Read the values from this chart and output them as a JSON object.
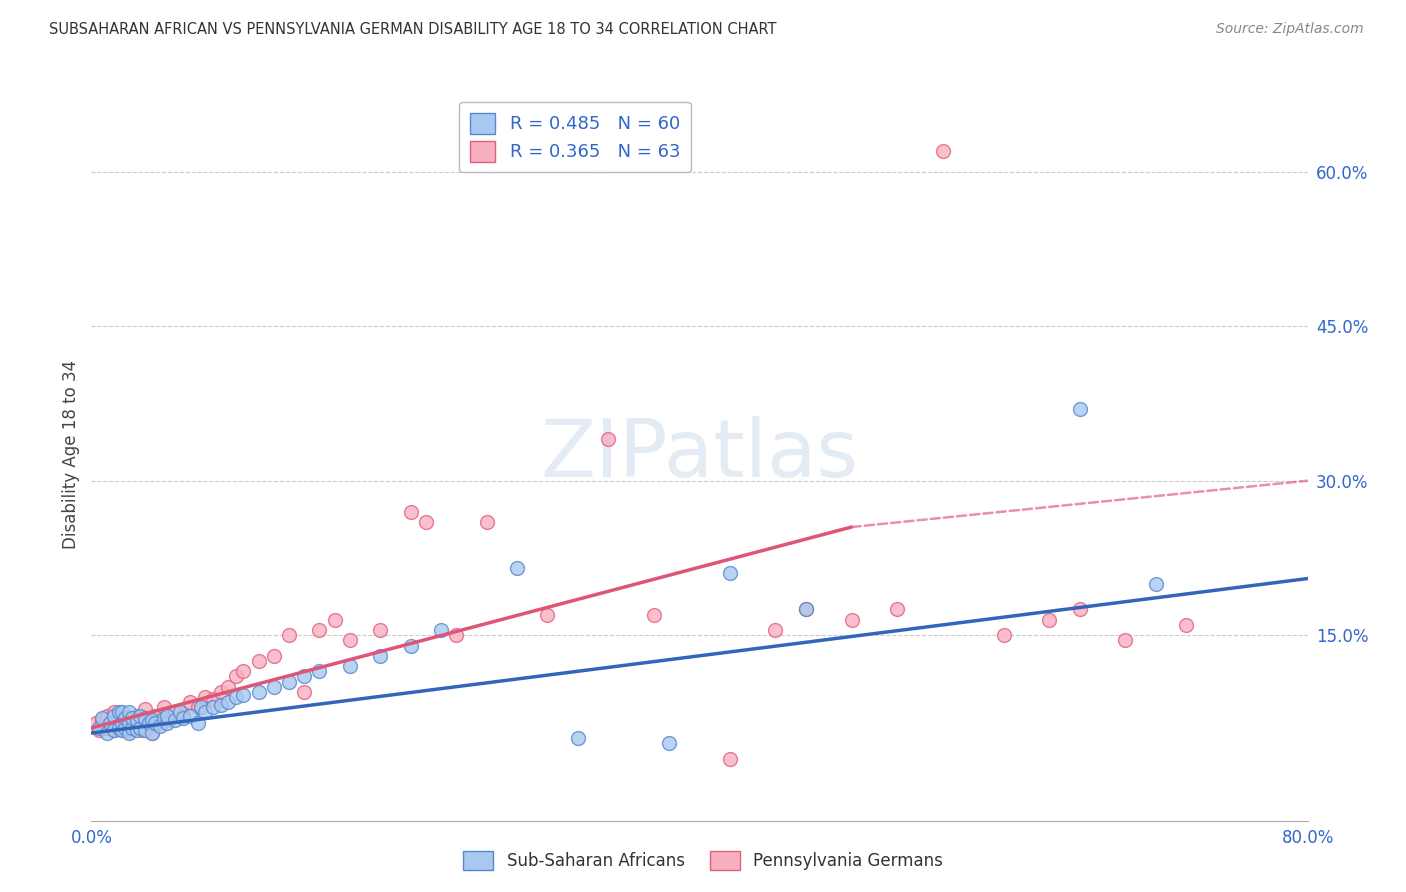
{
  "title": "SUBSAHARAN AFRICAN VS PENNSYLVANIA GERMAN DISABILITY AGE 18 TO 34 CORRELATION CHART",
  "source": "Source: ZipAtlas.com",
  "ylabel": "Disability Age 18 to 34",
  "xlim": [
    0,
    0.8
  ],
  "ylim": [
    -0.03,
    0.68
  ],
  "ytick_positions": [
    0.15,
    0.3,
    0.45,
    0.6
  ],
  "ytick_labels": [
    "15.0%",
    "30.0%",
    "45.0%",
    "60.0%"
  ],
  "blue_R": 0.485,
  "blue_N": 60,
  "pink_R": 0.365,
  "pink_N": 63,
  "blue_color": "#A8C8F0",
  "pink_color": "#F8B0C0",
  "blue_edge_color": "#5588CC",
  "pink_edge_color": "#E06080",
  "blue_line_color": "#3366BB",
  "pink_line_color": "#DD5577",
  "legend_label_blue": "Sub-Saharan Africans",
  "legend_label_pink": "Pennsylvania Germans",
  "blue_line_start_x": 0.0,
  "blue_line_end_x": 0.8,
  "blue_line_start_y": 0.055,
  "blue_line_end_y": 0.205,
  "pink_line_start_x": 0.0,
  "pink_line_solid_end_x": 0.5,
  "pink_line_end_x": 0.8,
  "pink_line_start_y": 0.06,
  "pink_line_solid_end_y": 0.255,
  "pink_line_end_y": 0.3,
  "blue_scatter_x": [
    0.005,
    0.007,
    0.01,
    0.012,
    0.015,
    0.015,
    0.018,
    0.018,
    0.02,
    0.02,
    0.02,
    0.022,
    0.022,
    0.025,
    0.025,
    0.025,
    0.027,
    0.027,
    0.03,
    0.03,
    0.032,
    0.032,
    0.035,
    0.035,
    0.038,
    0.04,
    0.04,
    0.042,
    0.045,
    0.048,
    0.05,
    0.05,
    0.055,
    0.058,
    0.06,
    0.065,
    0.07,
    0.072,
    0.075,
    0.08,
    0.085,
    0.09,
    0.095,
    0.1,
    0.11,
    0.12,
    0.13,
    0.14,
    0.15,
    0.17,
    0.19,
    0.21,
    0.23,
    0.28,
    0.32,
    0.38,
    0.42,
    0.47,
    0.65,
    0.7
  ],
  "blue_scatter_y": [
    0.06,
    0.07,
    0.055,
    0.065,
    0.058,
    0.072,
    0.06,
    0.075,
    0.058,
    0.065,
    0.075,
    0.06,
    0.07,
    0.055,
    0.065,
    0.075,
    0.06,
    0.07,
    0.058,
    0.068,
    0.06,
    0.072,
    0.058,
    0.07,
    0.065,
    0.055,
    0.068,
    0.065,
    0.062,
    0.07,
    0.065,
    0.072,
    0.068,
    0.075,
    0.07,
    0.072,
    0.065,
    0.08,
    0.075,
    0.08,
    0.082,
    0.085,
    0.09,
    0.092,
    0.095,
    0.1,
    0.105,
    0.11,
    0.115,
    0.12,
    0.13,
    0.14,
    0.155,
    0.215,
    0.05,
    0.045,
    0.21,
    0.175,
    0.37,
    0.2
  ],
  "pink_scatter_x": [
    0.003,
    0.005,
    0.007,
    0.01,
    0.01,
    0.012,
    0.015,
    0.015,
    0.018,
    0.02,
    0.02,
    0.022,
    0.022,
    0.025,
    0.025,
    0.028,
    0.03,
    0.03,
    0.033,
    0.035,
    0.035,
    0.038,
    0.04,
    0.042,
    0.045,
    0.048,
    0.05,
    0.055,
    0.06,
    0.065,
    0.07,
    0.075,
    0.08,
    0.085,
    0.09,
    0.095,
    0.1,
    0.11,
    0.12,
    0.13,
    0.14,
    0.15,
    0.16,
    0.17,
    0.19,
    0.21,
    0.22,
    0.24,
    0.26,
    0.3,
    0.34,
    0.37,
    0.42,
    0.45,
    0.47,
    0.5,
    0.53,
    0.56,
    0.6,
    0.63,
    0.65,
    0.68,
    0.72
  ],
  "pink_scatter_y": [
    0.065,
    0.058,
    0.068,
    0.06,
    0.072,
    0.065,
    0.058,
    0.075,
    0.062,
    0.058,
    0.07,
    0.063,
    0.072,
    0.058,
    0.068,
    0.065,
    0.06,
    0.072,
    0.058,
    0.065,
    0.078,
    0.062,
    0.055,
    0.072,
    0.065,
    0.08,
    0.068,
    0.075,
    0.072,
    0.085,
    0.08,
    0.09,
    0.088,
    0.095,
    0.1,
    0.11,
    0.115,
    0.125,
    0.13,
    0.15,
    0.095,
    0.155,
    0.165,
    0.145,
    0.155,
    0.27,
    0.26,
    0.15,
    0.26,
    0.17,
    0.34,
    0.17,
    0.03,
    0.155,
    0.175,
    0.165,
    0.175,
    0.62,
    0.15,
    0.165,
    0.175,
    0.145,
    0.16
  ]
}
